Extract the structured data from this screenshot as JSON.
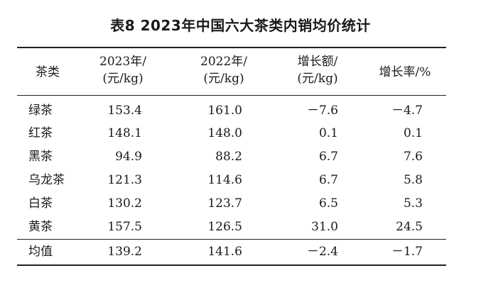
{
  "caption": "表8  2023年中国六大茶类内销均价统计",
  "headers": {
    "tea_type": "茶类",
    "y2023_line1": "2023年/",
    "y2023_line2": "(元/kg)",
    "y2022_line1": "2022年/",
    "y2022_line2": "(元/kg)",
    "growth_line1": "增长额/",
    "growth_line2": "(元/kg)",
    "rate": "增长率/%"
  },
  "rows": [
    {
      "name": "绿茶",
      "y2023": "153.4",
      "y2022": "161.0",
      "growth": "－7.6",
      "rate": "－4.7"
    },
    {
      "name": "红茶",
      "y2023": "148.1",
      "y2022": "148.0",
      "growth": "0.1",
      "rate": "0.1"
    },
    {
      "name": "黑茶",
      "y2023": "94.9",
      "y2022": "88.2",
      "growth": "6.7",
      "rate": "7.6"
    },
    {
      "name": "乌龙茶",
      "y2023": "121.3",
      "y2022": "114.6",
      "growth": "6.7",
      "rate": "5.8"
    },
    {
      "name": "白茶",
      "y2023": "130.2",
      "y2022": "123.7",
      "growth": "6.5",
      "rate": "5.3"
    },
    {
      "name": "黄茶",
      "y2023": "157.5",
      "y2022": "126.5",
      "growth": "31.0",
      "rate": "24.5"
    }
  ],
  "average": {
    "name": "均值",
    "y2023": "139.2",
    "y2022": "141.6",
    "growth": "－2.4",
    "rate": "－1.7"
  }
}
